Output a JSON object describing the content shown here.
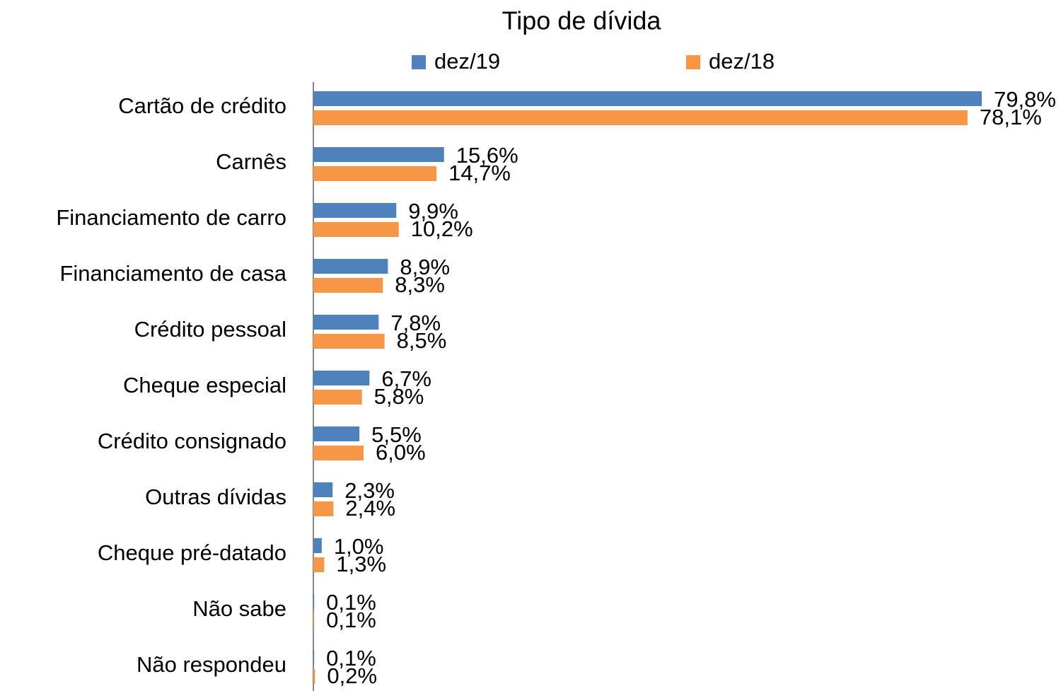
{
  "chart_data": {
    "type": "hbar",
    "title": "Tipo de dívida",
    "categories": [
      "Cartão de crédito",
      "Carnês",
      "Financiamento de carro",
      "Financiamento de casa",
      "Crédito pessoal",
      "Cheque especial",
      "Crédito consignado",
      "Outras dívidas",
      "Cheque pré-datado",
      "Não sabe",
      "Não respondeu"
    ],
    "series": [
      {
        "name": "dez/19",
        "color": "#4f81bd",
        "values": [
          79.8,
          15.6,
          9.9,
          8.9,
          7.8,
          6.7,
          5.5,
          2.3,
          1.0,
          0.1,
          0.1
        ],
        "value_labels": [
          "79,8%",
          "15,6%",
          "9,9%",
          "8,9%",
          "7,8%",
          "6,7%",
          "5,5%",
          "2,3%",
          "1,0%",
          "0,1%",
          "0,1%"
        ]
      },
      {
        "name": "dez/18",
        "color": "#f79646",
        "values": [
          78.1,
          14.7,
          10.2,
          8.3,
          8.5,
          5.8,
          6.0,
          2.4,
          1.3,
          0.1,
          0.2
        ],
        "value_labels": [
          "78,1%",
          "14,7%",
          "10,2%",
          "8,3%",
          "8,5%",
          "5,8%",
          "6,0%",
          "2,4%",
          "1,3%",
          "0,1%",
          "0,2%"
        ]
      }
    ],
    "legend": "top"
  }
}
